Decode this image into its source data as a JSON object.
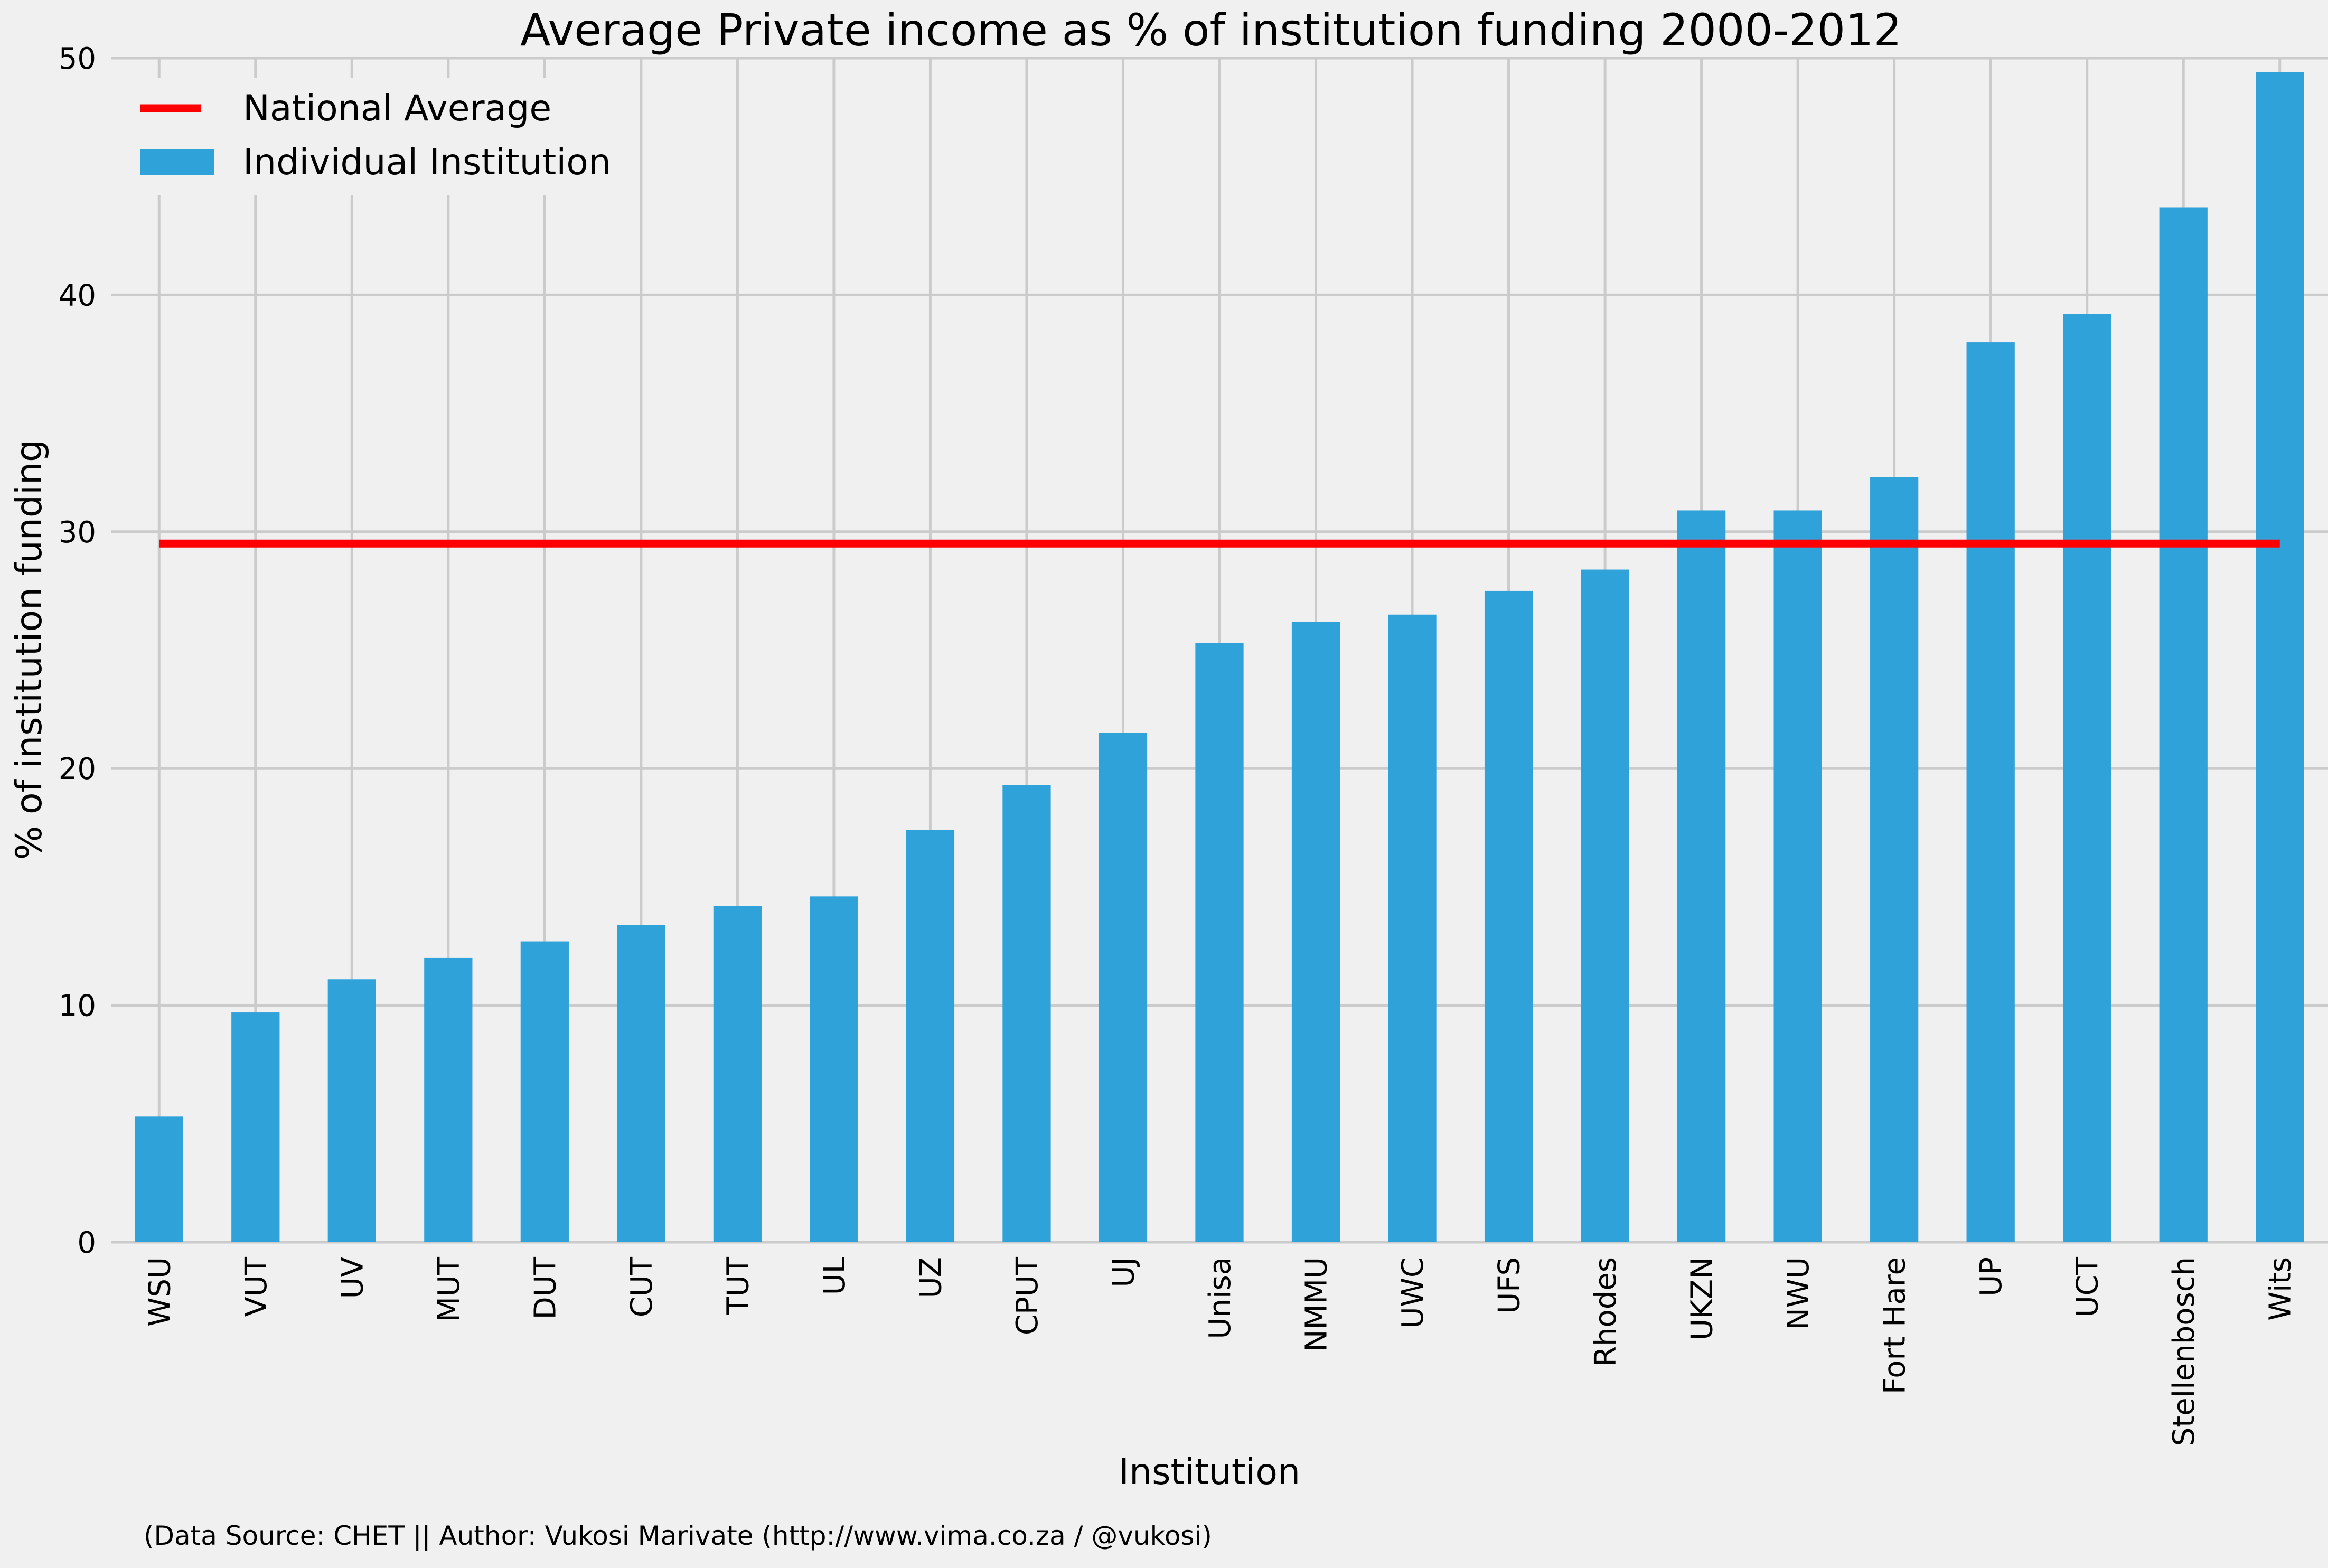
{
  "chart_data": {
    "type": "bar",
    "title": "Average Private income as % of institution funding 2000-2012",
    "xlabel": "Institution",
    "ylabel": "% of institution funding",
    "ylim": [
      0,
      50
    ],
    "yticks": [
      0,
      10,
      20,
      30,
      40,
      50
    ],
    "grid": true,
    "legend_position": "top-left",
    "categories": [
      "WSU",
      "VUT",
      "UV",
      "MUT",
      "DUT",
      "CUT",
      "TUT",
      "UL",
      "UZ",
      "CPUT",
      "UJ",
      "Unisa",
      "NMMU",
      "UWC",
      "UFS",
      "Rhodes",
      "UKZN",
      "NWU",
      "Fort Hare",
      "UP",
      "UCT",
      "Stellenbosch",
      "Wits"
    ],
    "series": [
      {
        "name": "Individual Institution",
        "color": "#30a2da",
        "values": [
          5.3,
          9.7,
          11.1,
          12.0,
          12.7,
          13.4,
          14.2,
          14.6,
          17.4,
          19.3,
          21.5,
          25.3,
          26.2,
          26.5,
          27.5,
          28.4,
          30.9,
          30.9,
          32.3,
          38.0,
          39.2,
          43.7,
          49.4
        ]
      }
    ],
    "reference_line": {
      "name": "National Average",
      "value": 29.5,
      "color": "#ff0000"
    },
    "footnote": "(Data Source: CHET || Author: Vukosi Marivate (http://www.vima.co.za / @vukosi)"
  }
}
